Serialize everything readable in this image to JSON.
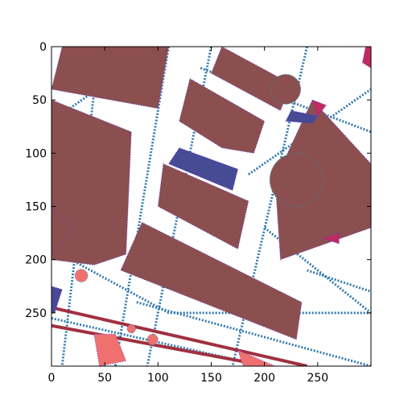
{
  "plot": {
    "type": "image",
    "xlim": [
      0,
      300
    ],
    "ylim_inverted": [
      300,
      0
    ],
    "x_ticks": [
      {
        "value": 0,
        "label": "0"
      },
      {
        "value": 50,
        "label": "50"
      },
      {
        "value": 100,
        "label": "100"
      },
      {
        "value": 150,
        "label": "150"
      },
      {
        "value": 200,
        "label": "200"
      },
      {
        "value": 250,
        "label": "250"
      }
    ],
    "y_ticks": [
      {
        "value": 0,
        "label": "0"
      },
      {
        "value": 50,
        "label": "50"
      },
      {
        "value": 100,
        "label": "100"
      },
      {
        "value": 150,
        "label": "150"
      },
      {
        "value": 200,
        "label": "200"
      },
      {
        "value": 250,
        "label": "250"
      }
    ]
  },
  "map": {
    "colors": {
      "background": "#ffffff",
      "building": "#8b4f4f",
      "parking": "#474a94",
      "pink_area": "#f07070",
      "magenta_area": "#c02a60",
      "dark_red_road": "#a03040",
      "road_edge": "#2a8fa8",
      "road_speckle": "#6a3dd0"
    },
    "buildings": [
      {
        "name": "top-left-block",
        "points": [
          [
            10,
            0
          ],
          [
            110,
            0
          ],
          [
            100,
            58
          ],
          [
            0,
            40
          ]
        ]
      },
      {
        "name": "left-large-block",
        "points": [
          [
            0,
            50
          ],
          [
            75,
            80
          ],
          [
            70,
            195
          ],
          [
            40,
            205
          ],
          [
            0,
            200
          ]
        ]
      },
      {
        "name": "left-lower-fragment",
        "points": [
          [
            0,
            150
          ],
          [
            20,
            170
          ],
          [
            0,
            195
          ]
        ]
      },
      {
        "name": "center-top-block",
        "points": [
          [
            130,
            30
          ],
          [
            200,
            70
          ],
          [
            190,
            100
          ],
          [
            160,
            95
          ],
          [
            120,
            70
          ]
        ]
      },
      {
        "name": "top-center-rect",
        "points": [
          [
            160,
            0
          ],
          [
            225,
            35
          ],
          [
            215,
            60
          ],
          [
            150,
            25
          ]
        ]
      },
      {
        "name": "circle-small",
        "circle": [
          220,
          40,
          14
        ]
      },
      {
        "name": "middle-block",
        "points": [
          [
            105,
            110
          ],
          [
            185,
            145
          ],
          [
            175,
            190
          ],
          [
            100,
            150
          ]
        ]
      },
      {
        "name": "large-lower-block",
        "points": [
          [
            85,
            165
          ],
          [
            235,
            240
          ],
          [
            230,
            275
          ],
          [
            65,
            210
          ]
        ]
      },
      {
        "name": "right-large-region",
        "points": [
          [
            245,
            50
          ],
          [
            300,
            110
          ],
          [
            300,
            170
          ],
          [
            215,
            200
          ],
          [
            210,
            125
          ]
        ]
      },
      {
        "name": "circle-large",
        "circle": [
          230,
          125,
          25
        ]
      }
    ],
    "parking": [
      {
        "name": "parking-center",
        "points": [
          [
            120,
            95
          ],
          [
            175,
            115
          ],
          [
            170,
            135
          ],
          [
            110,
            110
          ]
        ]
      },
      {
        "name": "parking-right-small",
        "points": [
          [
            225,
            60
          ],
          [
            250,
            65
          ],
          [
            245,
            72
          ],
          [
            220,
            70
          ]
        ]
      },
      {
        "name": "parking-left-edge",
        "points": [
          [
            0,
            225
          ],
          [
            10,
            228
          ],
          [
            3,
            250
          ],
          [
            0,
            250
          ]
        ]
      }
    ],
    "pink_areas": [
      {
        "name": "pink-top-left-blob",
        "circle": [
          28,
          215,
          6
        ]
      },
      {
        "name": "pink-bottom-left",
        "points": [
          [
            40,
            270
          ],
          [
            60,
            270
          ],
          [
            70,
            295
          ],
          [
            45,
            300
          ]
        ]
      },
      {
        "name": "pink-bottom-center",
        "points": [
          [
            175,
            285
          ],
          [
            210,
            300
          ],
          [
            180,
            300
          ]
        ]
      },
      {
        "name": "pink-bottom-small1",
        "circle": [
          75,
          265,
          4
        ]
      },
      {
        "name": "pink-bottom-small2",
        "circle": [
          95,
          275,
          5
        ]
      }
    ],
    "magenta_areas": [
      {
        "name": "magenta-top-right",
        "points": [
          [
            295,
            0
          ],
          [
            300,
            0
          ],
          [
            300,
            20
          ],
          [
            292,
            15
          ]
        ]
      },
      {
        "name": "magenta-right-mid",
        "points": [
          [
            255,
            180
          ],
          [
            270,
            175
          ],
          [
            270,
            185
          ]
        ]
      },
      {
        "name": "magenta-center-top",
        "points": [
          [
            245,
            50
          ],
          [
            258,
            55
          ],
          [
            250,
            65
          ]
        ]
      }
    ]
  }
}
